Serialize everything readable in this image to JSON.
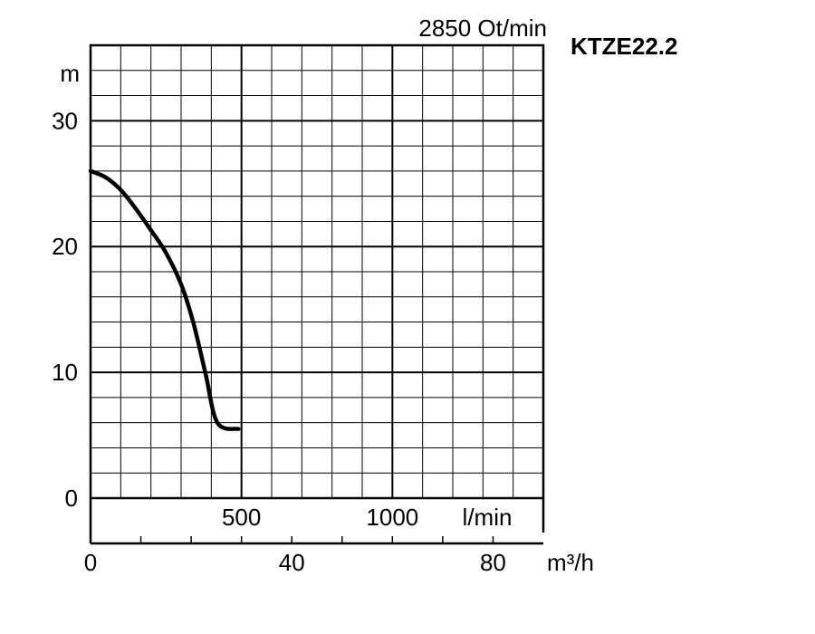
{
  "chart_data": {
    "type": "line",
    "model": "KTZE22.2",
    "speed_label": "2850 Ot/min",
    "y_unit": "m",
    "ylim": [
      0,
      36
    ],
    "y_ticks": [
      {
        "value": 0,
        "label": "0"
      },
      {
        "value": 10,
        "label": "10"
      },
      {
        "value": 20,
        "label": "20"
      },
      {
        "value": 30,
        "label": "30"
      }
    ],
    "x_unit_lmin": "l/min",
    "xlim_lmin": [
      0,
      1500
    ],
    "x_ticks_lmin": [
      {
        "value": 500,
        "label": "500"
      },
      {
        "value": 1000,
        "label": "1000"
      }
    ],
    "x_unit_m3h": "m³/h",
    "xlim_m3h": [
      0,
      90
    ],
    "x_ticks_m3h": [
      {
        "value": 0,
        "label": "0"
      },
      {
        "value": 40,
        "label": "40"
      },
      {
        "value": 80,
        "label": "80"
      }
    ],
    "grid": true,
    "series": [
      {
        "color": "#000000",
        "points": [
          {
            "x": 0,
            "y": 26.0
          },
          {
            "x": 50,
            "y": 25.5
          },
          {
            "x": 100,
            "y": 24.5
          },
          {
            "x": 150,
            "y": 23.0
          },
          {
            "x": 200,
            "y": 21.3
          },
          {
            "x": 250,
            "y": 19.5
          },
          {
            "x": 300,
            "y": 17.0
          },
          {
            "x": 340,
            "y": 14.0
          },
          {
            "x": 380,
            "y": 10.0
          },
          {
            "x": 420,
            "y": 6.0
          },
          {
            "x": 490,
            "y": 5.5
          }
        ]
      }
    ]
  }
}
